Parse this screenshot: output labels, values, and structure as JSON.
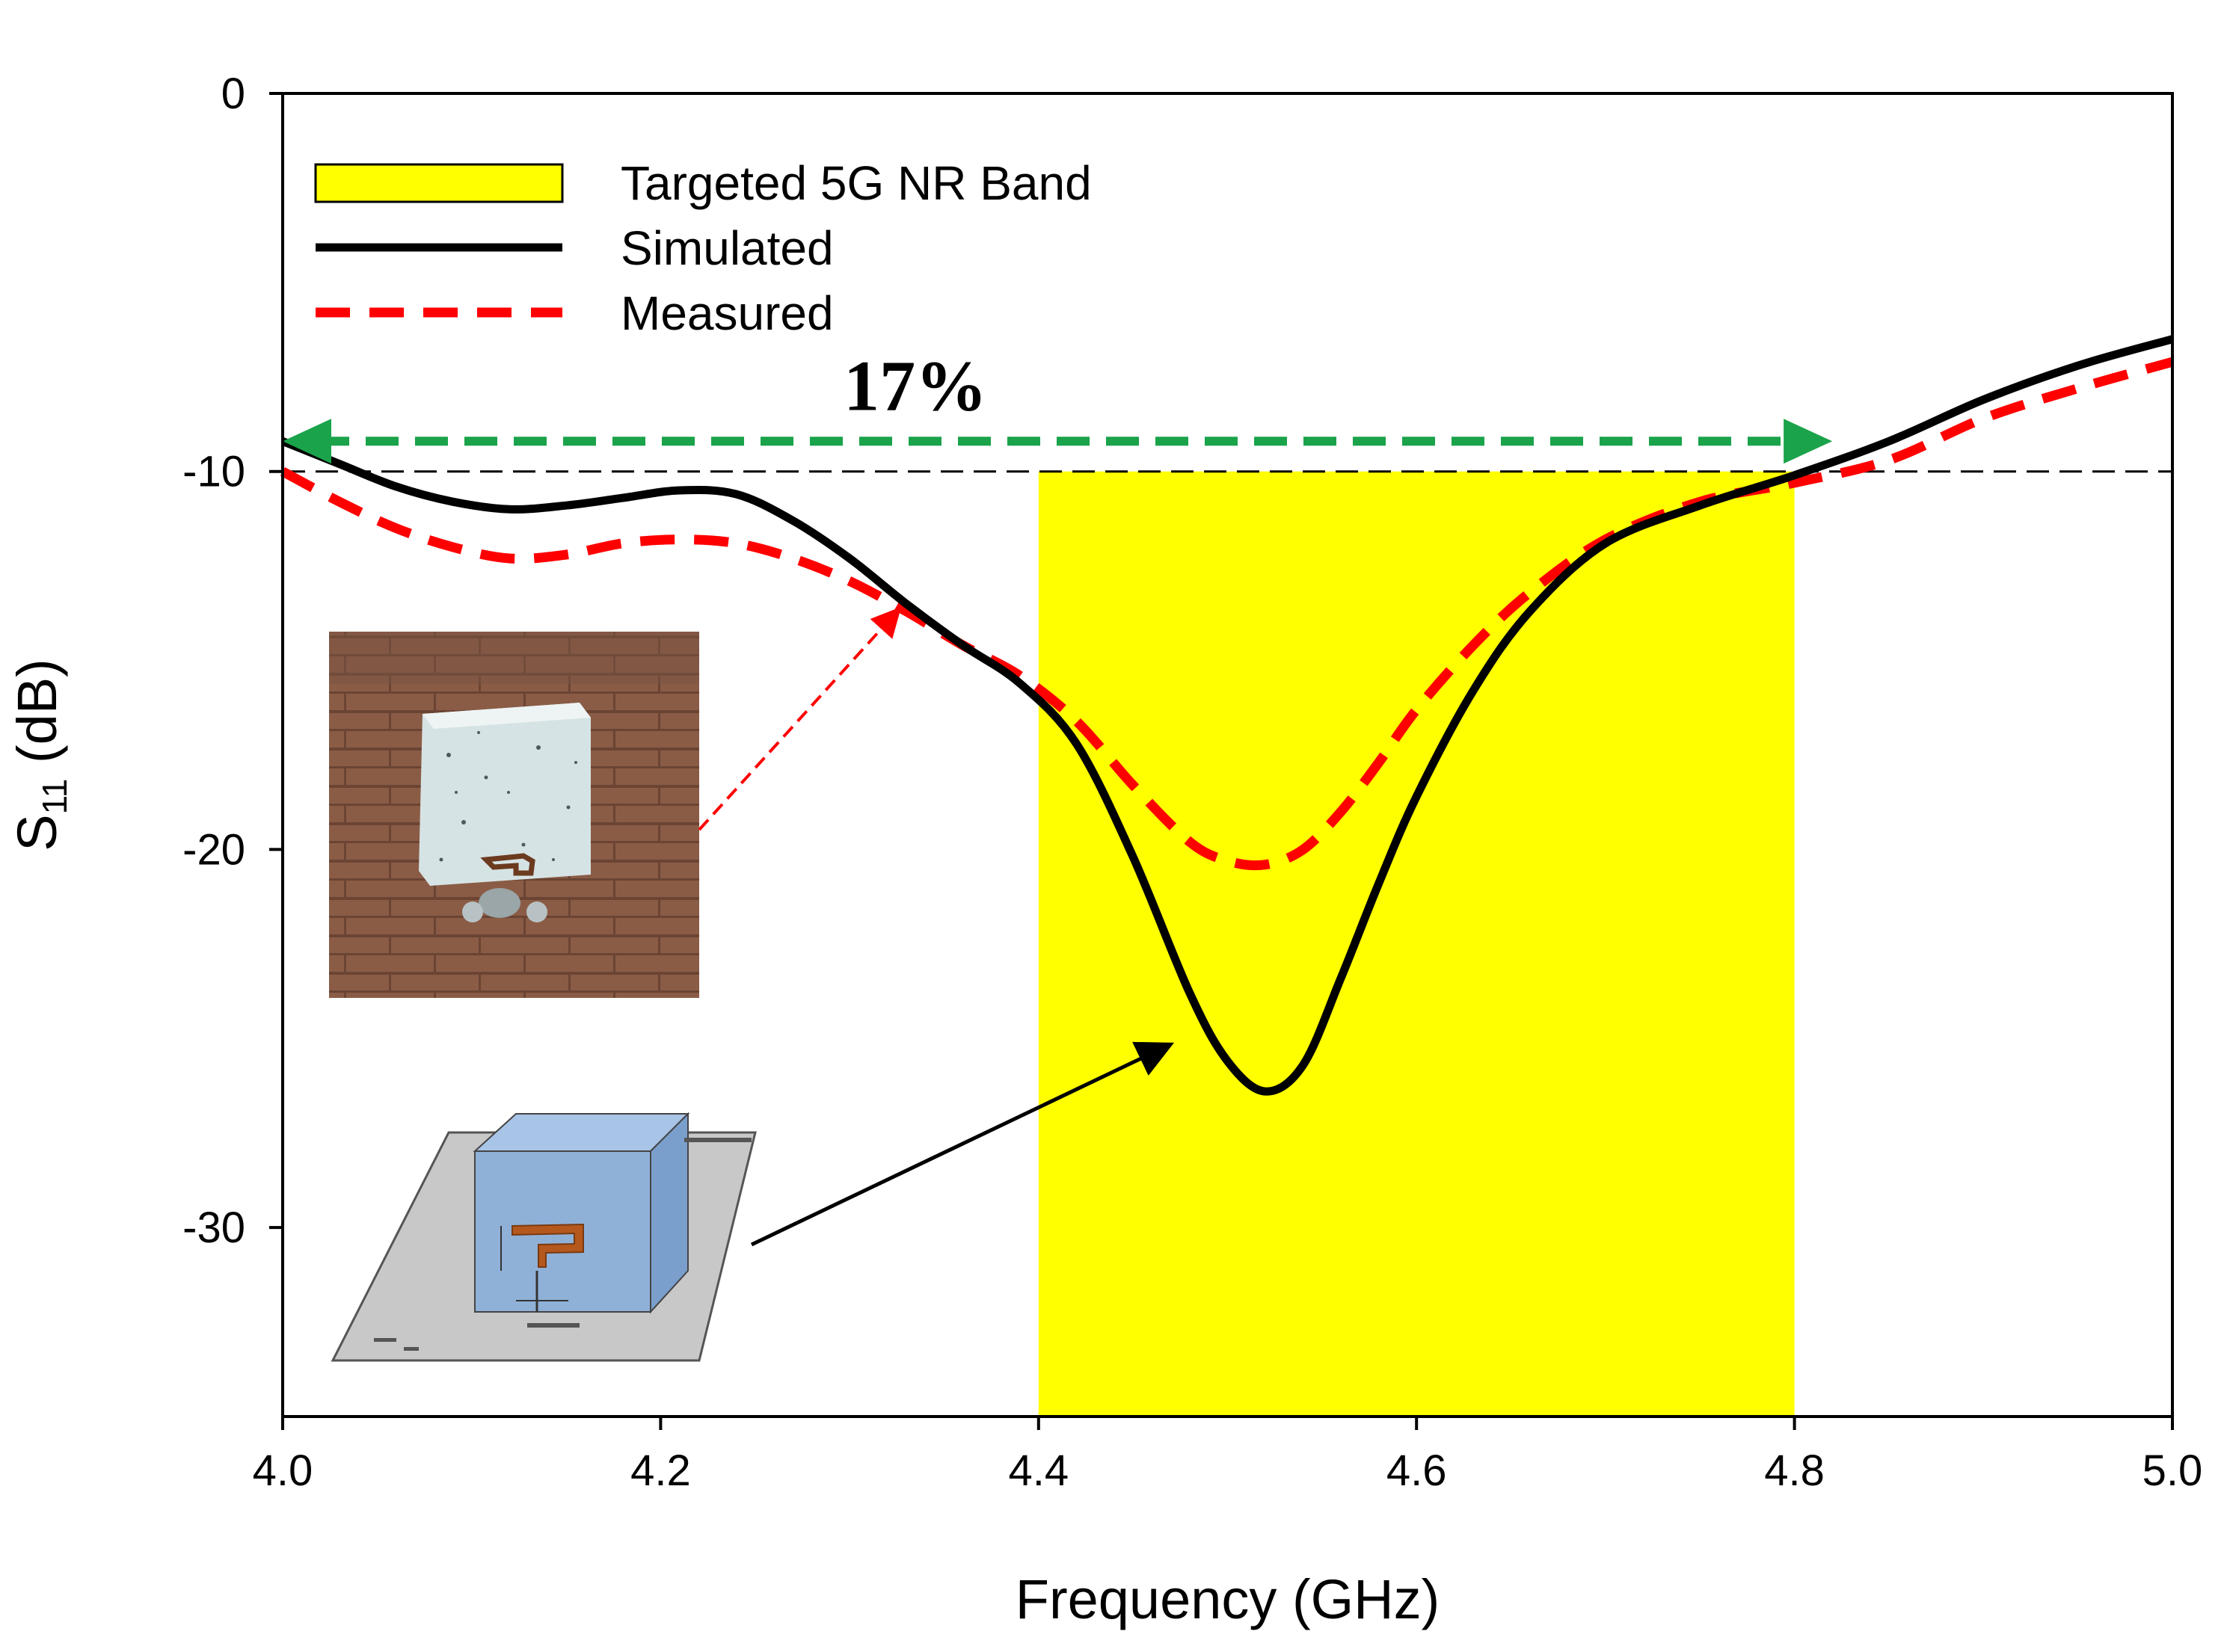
{
  "chart_data": {
    "type": "line",
    "xlabel": "Frequency (GHz)",
    "ylabel": {
      "main": "S",
      "sub": "11",
      "unit": " (dB)"
    },
    "xlim": [
      4.0,
      5.0
    ],
    "ylim": [
      -35,
      0
    ],
    "xticks": [
      4.0,
      4.2,
      4.4,
      4.6,
      4.8,
      5.0
    ],
    "xtick_labels": [
      "4.0",
      "4.2",
      "4.4",
      "4.6",
      "4.8",
      "5.0"
    ],
    "yticks": [
      0,
      -10,
      -20,
      -30
    ],
    "ytick_labels": [
      "0",
      "-10",
      "-20",
      "-30"
    ],
    "reference_line": -10,
    "band": {
      "name": "Targeted 5G NR Band",
      "x": [
        4.4,
        4.8
      ],
      "y": [
        -35,
        -10
      ],
      "color": "#ffff00"
    },
    "bandwidth_annotation": {
      "text": "17%",
      "x": [
        4.0,
        4.82
      ],
      "y": -9.2,
      "color": "#1aa34a"
    },
    "series": [
      {
        "name": "Simulated",
        "color": "#000000",
        "style": "solid",
        "x": [
          4.0,
          4.03,
          4.06,
          4.09,
          4.12,
          4.15,
          4.18,
          4.21,
          4.24,
          4.27,
          4.3,
          4.33,
          4.36,
          4.39,
          4.42,
          4.45,
          4.48,
          4.5,
          4.52,
          4.54,
          4.56,
          4.58,
          4.6,
          4.63,
          4.66,
          4.7,
          4.75,
          4.8,
          4.85,
          4.9,
          4.95,
          5.0
        ],
        "y": [
          -9.2,
          -9.8,
          -10.4,
          -10.8,
          -11.0,
          -10.9,
          -10.7,
          -10.5,
          -10.6,
          -11.3,
          -12.3,
          -13.5,
          -14.6,
          -15.6,
          -17.2,
          -20.2,
          -23.8,
          -25.6,
          -26.4,
          -25.7,
          -23.4,
          -20.9,
          -18.6,
          -15.8,
          -13.7,
          -11.9,
          -10.9,
          -10.1,
          -9.2,
          -8.1,
          -7.2,
          -6.5
        ]
      },
      {
        "name": "Measured",
        "color": "#ff0000",
        "style": "dashed",
        "x": [
          4.0,
          4.03,
          4.06,
          4.09,
          4.12,
          4.15,
          4.18,
          4.21,
          4.24,
          4.27,
          4.3,
          4.33,
          4.36,
          4.39,
          4.42,
          4.45,
          4.48,
          4.5,
          4.52,
          4.54,
          4.56,
          4.58,
          4.6,
          4.63,
          4.66,
          4.7,
          4.75,
          4.8,
          4.85,
          4.9,
          4.95,
          5.0
        ],
        "y": [
          -10.0,
          -10.8,
          -11.5,
          -12.0,
          -12.3,
          -12.2,
          -11.9,
          -11.8,
          -11.9,
          -12.3,
          -12.9,
          -13.7,
          -14.6,
          -15.4,
          -16.6,
          -18.3,
          -19.8,
          -20.3,
          -20.4,
          -20.0,
          -19.0,
          -17.7,
          -16.3,
          -14.6,
          -13.2,
          -11.8,
          -10.8,
          -10.3,
          -9.7,
          -8.6,
          -7.8,
          -7.1
        ]
      }
    ],
    "annotations": [
      {
        "kind": "arrow",
        "target_series": "Measured",
        "style": "dashed",
        "color": "#ff0000",
        "target": [
          4.33,
          -13.5
        ]
      },
      {
        "kind": "arrow",
        "target_series": "Simulated",
        "style": "solid",
        "color": "#000000",
        "target": [
          4.48,
          -24.8
        ]
      }
    ],
    "insets": [
      {
        "kind": "photo",
        "name": "fabricated antenna photo"
      },
      {
        "kind": "3d model",
        "name": "simulated antenna model"
      }
    ]
  }
}
